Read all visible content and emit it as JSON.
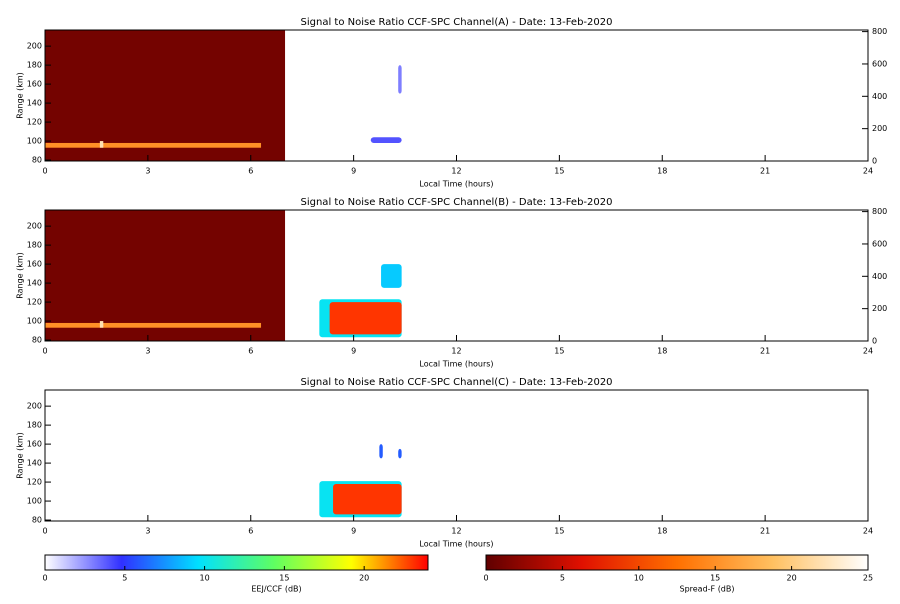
{
  "chart_data": [
    {
      "type": "heatmap",
      "title": "Signal to Noise Ratio CCF-SPC Channel(A) - Date: 13-Feb-2020",
      "xlabel": "Local Time (hours)",
      "ylabel": "Range (km)",
      "xlim": [
        0,
        24
      ],
      "xticks": [
        0,
        3,
        6,
        9,
        12,
        15,
        18,
        21,
        24
      ],
      "ylim": [
        79,
        217
      ],
      "yticks": [
        80,
        100,
        120,
        140,
        160,
        180,
        200
      ],
      "y2lim": [
        0,
        810
      ],
      "y2ticks": [
        0,
        200,
        400,
        600,
        800
      ],
      "spread_f_cells": [
        {
          "x": [
            0,
            7
          ],
          "y": [
            79,
            217
          ],
          "value": 1
        },
        {
          "x": [
            0,
            6.3
          ],
          "y": [
            93,
            98
          ],
          "value": 15
        },
        {
          "x": [
            1.6,
            1.7
          ],
          "y": [
            93,
            100
          ],
          "value": 22
        }
      ],
      "eej_cells": [
        {
          "x": [
            9.5,
            10.4
          ],
          "y": [
            98,
            104
          ],
          "value": 4
        },
        {
          "x": [
            10.3,
            10.4
          ],
          "y": [
            150,
            180
          ],
          "value": 3
        }
      ]
    },
    {
      "type": "heatmap",
      "title": "Signal to Noise Ratio CCF-SPC Channel(B) - Date: 13-Feb-2020",
      "xlabel": "Local Time (hours)",
      "ylabel": "Range (km)",
      "xlim": [
        0,
        24
      ],
      "xticks": [
        0,
        3,
        6,
        9,
        12,
        15,
        18,
        21,
        24
      ],
      "ylim": [
        79,
        217
      ],
      "yticks": [
        80,
        100,
        120,
        140,
        160,
        180,
        200
      ],
      "y2lim": [
        0,
        810
      ],
      "y2ticks": [
        0,
        200,
        400,
        600,
        800
      ],
      "spread_f_cells": [
        {
          "x": [
            0,
            7
          ],
          "y": [
            79,
            217
          ],
          "value": 1
        },
        {
          "x": [
            0,
            6.3
          ],
          "y": [
            93,
            98
          ],
          "value": 15
        },
        {
          "x": [
            1.6,
            1.7
          ],
          "y": [
            93,
            100
          ],
          "value": 22
        }
      ],
      "eej_cells": [
        {
          "x": [
            8,
            10.4
          ],
          "y": [
            83,
            123
          ],
          "value": 10
        },
        {
          "x": [
            8.3,
            10.4
          ],
          "y": [
            86,
            120
          ],
          "value": 23
        },
        {
          "x": [
            9.8,
            10.4
          ],
          "y": [
            135,
            160
          ],
          "value": 9
        }
      ]
    },
    {
      "type": "heatmap",
      "title": "Signal to Noise Ratio CCF-SPC Channel(C) - Date: 13-Feb-2020",
      "xlabel": "Local Time (hours)",
      "ylabel": "Range (km)",
      "xlim": [
        0,
        24
      ],
      "xticks": [
        0,
        3,
        6,
        9,
        12,
        15,
        18,
        21,
        24
      ],
      "ylim": [
        79,
        217
      ],
      "yticks": [
        80,
        100,
        120,
        140,
        160,
        180,
        200
      ],
      "spread_f_cells": [],
      "eej_cells": [
        {
          "x": [
            8,
            10.4
          ],
          "y": [
            83,
            121
          ],
          "value": 10
        },
        {
          "x": [
            8.4,
            10.4
          ],
          "y": [
            86,
            118
          ],
          "value": 23
        },
        {
          "x": [
            9.75,
            9.85
          ],
          "y": [
            145,
            160
          ],
          "value": 6
        },
        {
          "x": [
            10.3,
            10.4
          ],
          "y": [
            145,
            155
          ],
          "value": 6
        }
      ]
    },
    {
      "type": "colorbar",
      "label": "EEJ/CCF (dB)",
      "xlim": [
        0,
        24
      ],
      "xticks": [
        0,
        5,
        10,
        15,
        20
      ],
      "colors": [
        "#ffffff",
        "#3030ff",
        "#00e0ff",
        "#60ff60",
        "#ffff00",
        "#ff0000"
      ]
    },
    {
      "type": "colorbar",
      "label": "Spread-F (dB)",
      "xlim": [
        0,
        25
      ],
      "xticks": [
        0,
        5,
        10,
        15,
        20,
        25
      ],
      "colors": [
        "#600000",
        "#e01000",
        "#ff7000",
        "#ffc060",
        "#ffffff"
      ]
    }
  ]
}
